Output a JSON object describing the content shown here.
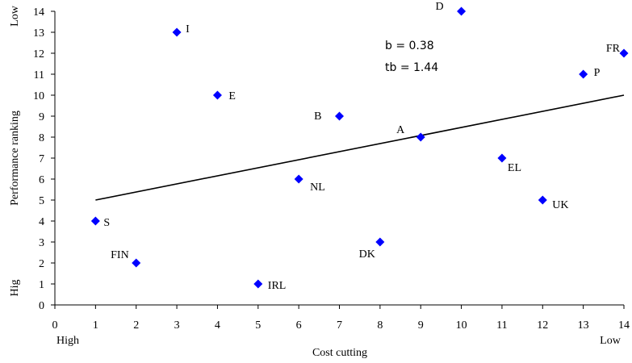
{
  "chart_data": {
    "type": "scatter",
    "title": "",
    "xlabel": "Cost cutting",
    "ylabel": "Performance ranking",
    "xlim": [
      0,
      14
    ],
    "ylim": [
      0,
      14
    ],
    "x_ticks": [
      0,
      1,
      2,
      3,
      4,
      5,
      6,
      7,
      8,
      9,
      10,
      11,
      12,
      13,
      14
    ],
    "y_ticks": [
      0,
      1,
      2,
      3,
      4,
      5,
      6,
      7,
      8,
      9,
      10,
      11,
      12,
      13,
      14
    ],
    "x_low_end_label": "High",
    "x_high_end_label": "Low",
    "y_low_end_label": "Hig",
    "y_high_end_label": "Low",
    "points": [
      {
        "label": "S",
        "x": 1,
        "y": 4
      },
      {
        "label": "FIN",
        "x": 2,
        "y": 2
      },
      {
        "label": "I",
        "x": 3,
        "y": 13
      },
      {
        "label": "E",
        "x": 4,
        "y": 10
      },
      {
        "label": "IRL",
        "x": 5,
        "y": 1
      },
      {
        "label": "NL",
        "x": 6,
        "y": 6
      },
      {
        "label": "B",
        "x": 7,
        "y": 9
      },
      {
        "label": "DK",
        "x": 8,
        "y": 3
      },
      {
        "label": "A",
        "x": 9,
        "y": 8
      },
      {
        "label": "D",
        "x": 10,
        "y": 14
      },
      {
        "label": "EL",
        "x": 11,
        "y": 7
      },
      {
        "label": "UK",
        "x": 12,
        "y": 5
      },
      {
        "label": "P",
        "x": 13,
        "y": 11
      },
      {
        "label": "FR",
        "x": 14,
        "y": 12
      }
    ],
    "trendline": {
      "x": [
        1,
        14
      ],
      "y": [
        5,
        10
      ]
    },
    "annotations": [
      "b = 0.38",
      "tb = 1.44"
    ],
    "marker_color": "#0000ff",
    "grid": false,
    "legend": "none"
  }
}
